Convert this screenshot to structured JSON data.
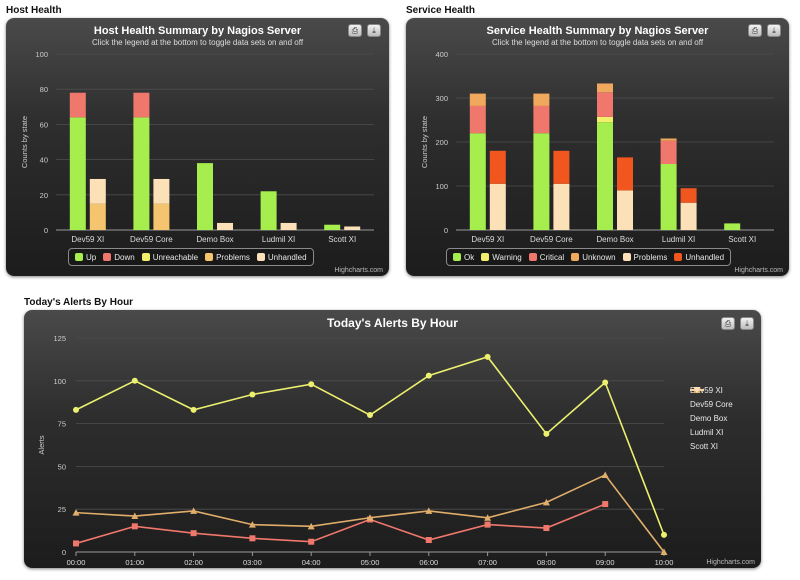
{
  "sections": {
    "host": "Host Health",
    "service": "Service Health",
    "alerts": "Today's Alerts By Hour"
  },
  "credits": "Highcharts.com",
  "icons": {
    "print": "printer-icon",
    "export": "download-icon"
  },
  "chart_data": [
    {
      "type": "bar",
      "title": "Host Health Summary by Nagios Server",
      "subtitle": "Click the legend at the bottom to toggle data sets on and off",
      "ylabel": "Counts by state",
      "xlabel": "",
      "ylim": [
        0,
        100
      ],
      "yticks": [
        0,
        20,
        40,
        60,
        80,
        100
      ],
      "categories": [
        "Dev59 XI",
        "Dev59 Core",
        "Demo Box",
        "Ludmil XI",
        "Scott XI"
      ],
      "stacks": [
        {
          "stack": "host",
          "members": [
            "Up",
            "Down",
            "Unreachable"
          ]
        },
        {
          "stack": "issues",
          "members": [
            "Problems",
            "Unhandled"
          ]
        }
      ],
      "series": [
        {
          "name": "Up",
          "stack": "host",
          "color": "#a6ee4d",
          "values": [
            64,
            64,
            38,
            22,
            3
          ]
        },
        {
          "name": "Down",
          "stack": "host",
          "color": "#f0776c",
          "values": [
            14,
            14,
            0,
            0,
            0
          ]
        },
        {
          "name": "Unreachable",
          "stack": "host",
          "color": "#f2f06b",
          "values": [
            0,
            0,
            0,
            0,
            0
          ]
        },
        {
          "name": "Problems",
          "stack": "issues",
          "color": "#f5c46e",
          "values": [
            15,
            15,
            0,
            0,
            0
          ]
        },
        {
          "name": "Unhandled",
          "stack": "issues",
          "color": "#fbe0b8",
          "values": [
            14,
            14,
            4,
            4,
            2
          ]
        }
      ],
      "legend": "bottom"
    },
    {
      "type": "bar",
      "title": "Service Health Summary by Nagios Server",
      "subtitle": "Click the legend at the bottom to toggle data sets on and off",
      "ylabel": "Counts by state",
      "xlabel": "",
      "ylim": [
        0,
        400
      ],
      "yticks": [
        0,
        100,
        200,
        300,
        400
      ],
      "categories": [
        "Dev59 XI",
        "Dev59 Core",
        "Demo Box",
        "Ludmil XI",
        "Scott XI"
      ],
      "series": [
        {
          "name": "Ok",
          "stack": "svc",
          "color": "#a6ee4d",
          "values": [
            220,
            220,
            245,
            150,
            15
          ]
        },
        {
          "name": "Warning",
          "stack": "svc",
          "color": "#f2f06b",
          "values": [
            0,
            0,
            12,
            0,
            0
          ]
        },
        {
          "name": "Critical",
          "stack": "svc",
          "color": "#f0776c",
          "values": [
            62,
            62,
            56,
            53,
            0
          ]
        },
        {
          "name": "Unknown",
          "stack": "svc",
          "color": "#f0a95c",
          "values": [
            28,
            28,
            20,
            5,
            0
          ]
        },
        {
          "name": "Problems",
          "stack": "issues",
          "color": "#fbe0b8",
          "values": [
            105,
            105,
            90,
            62,
            0
          ]
        },
        {
          "name": "Unhandled",
          "stack": "issues",
          "color": "#f0561e",
          "values": [
            75,
            75,
            75,
            33,
            0
          ]
        }
      ],
      "legend": "bottom"
    },
    {
      "type": "line",
      "title": "Today's Alerts By Hour",
      "ylabel": "Alerts",
      "xlabel": "",
      "ylim": [
        0,
        125
      ],
      "yticks": [
        0,
        25,
        50,
        75,
        100,
        125
      ],
      "x": [
        "00:00",
        "01:00",
        "02:00",
        "03:00",
        "04:00",
        "05:00",
        "06:00",
        "07:00",
        "08:00",
        "09:00",
        "10:00"
      ],
      "series": [
        {
          "name": "Dev59 XI",
          "color": "#a6ee4d",
          "marker": "circle",
          "values": [
            null,
            null,
            null,
            null,
            null,
            null,
            null,
            null,
            null,
            null,
            null
          ]
        },
        {
          "name": "Dev59 Core",
          "color": "#ecf06e",
          "marker": "diamond",
          "values": [
            83,
            100,
            83,
            92,
            98,
            80,
            103,
            114,
            69,
            99,
            10
          ]
        },
        {
          "name": "Demo Box",
          "color": "#f0776c",
          "marker": "square",
          "values": [
            5,
            15,
            11,
            8,
            6,
            19,
            7,
            16,
            14,
            28,
            null
          ]
        },
        {
          "name": "Ludmil XI",
          "color": "#e0ae6a",
          "marker": "triangle",
          "values": [
            23,
            21,
            24,
            16,
            15,
            20,
            24,
            20,
            29,
            45,
            0
          ]
        },
        {
          "name": "Scott XI",
          "color": "#fbe0b8",
          "marker": "triangle-down",
          "values": [
            null,
            null,
            null,
            null,
            null,
            null,
            null,
            null,
            null,
            null,
            null
          ]
        }
      ],
      "legend": "right"
    }
  ]
}
